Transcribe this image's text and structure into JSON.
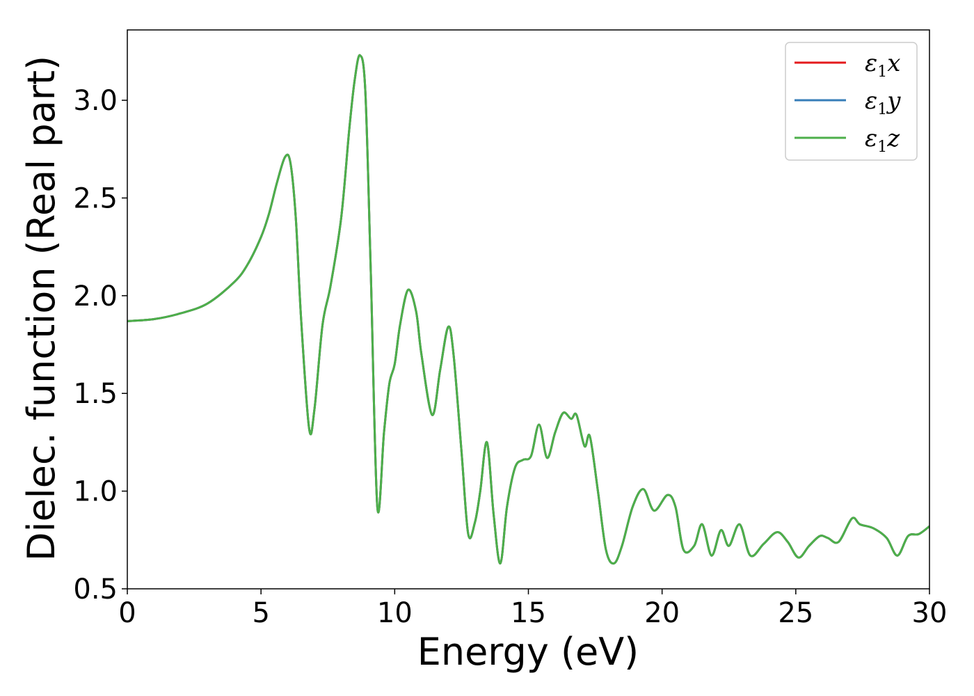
{
  "chart_data": {
    "type": "line",
    "title": "",
    "xlabel": "Energy (eV)",
    "ylabel": "Dielec. function (Real part)",
    "xlim": [
      0,
      30
    ],
    "ylim": [
      0.5,
      3.36
    ],
    "xticks": [
      0,
      5,
      10,
      15,
      20,
      25,
      30
    ],
    "xtick_labels": [
      "0",
      "5",
      "10",
      "15",
      "20",
      "25",
      "30"
    ],
    "yticks": [
      0.5,
      1.0,
      1.5,
      2.0,
      2.5,
      3.0
    ],
    "ytick_labels": [
      "0.5",
      "1.0",
      "1.5",
      "2.0",
      "2.5",
      "3.0"
    ],
    "grid": false,
    "legend_position": "top-right",
    "series": [
      {
        "name": "ε1x",
        "legend": {
          "base": "ε",
          "sub": "1",
          "comp": "x"
        },
        "color": "#e41a1c",
        "x": [
          0,
          1,
          2,
          3,
          4,
          4.5,
          5,
          5.3,
          5.6,
          5.9,
          6.1,
          6.3,
          6.5,
          6.8,
          7.0,
          7.3,
          7.6,
          8.0,
          8.3,
          8.5,
          8.7,
          8.9,
          9.1,
          9.35,
          9.6,
          9.8,
          10.0,
          10.2,
          10.5,
          10.8,
          11.0,
          11.4,
          11.7,
          12.0,
          12.2,
          12.5,
          12.75,
          13.0,
          13.2,
          13.45,
          13.7,
          13.95,
          14.2,
          14.5,
          14.8,
          15.1,
          15.4,
          15.7,
          16.0,
          16.3,
          16.6,
          16.8,
          17.1,
          17.3,
          17.6,
          17.9,
          18.2,
          18.5,
          18.9,
          19.3,
          19.7,
          20.2,
          20.5,
          20.8,
          21.2,
          21.5,
          21.85,
          22.2,
          22.5,
          22.9,
          23.3,
          23.8,
          24.3,
          24.7,
          25.1,
          25.5,
          25.9,
          26.2,
          26.6,
          27.1,
          27.4,
          27.9,
          28.4,
          28.8,
          29.2,
          29.6,
          30.0
        ],
        "y": [
          1.87,
          1.88,
          1.91,
          1.96,
          2.07,
          2.16,
          2.3,
          2.42,
          2.58,
          2.71,
          2.68,
          2.4,
          1.88,
          1.32,
          1.42,
          1.85,
          2.05,
          2.4,
          2.85,
          3.1,
          3.23,
          3.05,
          2.15,
          0.92,
          1.3,
          1.55,
          1.65,
          1.85,
          2.03,
          1.92,
          1.7,
          1.39,
          1.62,
          1.84,
          1.7,
          1.2,
          0.78,
          0.84,
          1.0,
          1.25,
          0.88,
          0.63,
          0.92,
          1.12,
          1.16,
          1.18,
          1.34,
          1.17,
          1.3,
          1.4,
          1.37,
          1.39,
          1.23,
          1.28,
          1.0,
          0.7,
          0.63,
          0.72,
          0.92,
          1.01,
          0.9,
          0.98,
          0.92,
          0.7,
          0.72,
          0.83,
          0.67,
          0.8,
          0.72,
          0.83,
          0.67,
          0.73,
          0.79,
          0.74,
          0.66,
          0.72,
          0.77,
          0.76,
          0.74,
          0.86,
          0.83,
          0.81,
          0.76,
          0.67,
          0.77,
          0.78,
          0.82
        ]
      },
      {
        "name": "ε1y",
        "legend": {
          "base": "ε",
          "sub": "1",
          "comp": "y"
        },
        "color": "#377eb8",
        "x": [
          0,
          1,
          2,
          3,
          4,
          4.5,
          5,
          5.3,
          5.6,
          5.9,
          6.1,
          6.3,
          6.5,
          6.8,
          7.0,
          7.3,
          7.6,
          8.0,
          8.3,
          8.5,
          8.7,
          8.9,
          9.1,
          9.35,
          9.6,
          9.8,
          10.0,
          10.2,
          10.5,
          10.8,
          11.0,
          11.4,
          11.7,
          12.0,
          12.2,
          12.5,
          12.75,
          13.0,
          13.2,
          13.45,
          13.7,
          13.95,
          14.2,
          14.5,
          14.8,
          15.1,
          15.4,
          15.7,
          16.0,
          16.3,
          16.6,
          16.8,
          17.1,
          17.3,
          17.6,
          17.9,
          18.2,
          18.5,
          18.9,
          19.3,
          19.7,
          20.2,
          20.5,
          20.8,
          21.2,
          21.5,
          21.85,
          22.2,
          22.5,
          22.9,
          23.3,
          23.8,
          24.3,
          24.7,
          25.1,
          25.5,
          25.9,
          26.2,
          26.6,
          27.1,
          27.4,
          27.9,
          28.4,
          28.8,
          29.2,
          29.6,
          30.0
        ],
        "y": [
          1.87,
          1.88,
          1.91,
          1.96,
          2.07,
          2.16,
          2.3,
          2.42,
          2.58,
          2.71,
          2.68,
          2.4,
          1.88,
          1.32,
          1.42,
          1.85,
          2.05,
          2.4,
          2.85,
          3.1,
          3.23,
          3.05,
          2.15,
          0.92,
          1.3,
          1.55,
          1.65,
          1.85,
          2.03,
          1.92,
          1.7,
          1.39,
          1.62,
          1.84,
          1.7,
          1.2,
          0.78,
          0.84,
          1.0,
          1.25,
          0.88,
          0.63,
          0.92,
          1.12,
          1.16,
          1.18,
          1.34,
          1.17,
          1.3,
          1.4,
          1.37,
          1.39,
          1.23,
          1.28,
          1.0,
          0.7,
          0.63,
          0.72,
          0.92,
          1.01,
          0.9,
          0.98,
          0.92,
          0.7,
          0.72,
          0.83,
          0.67,
          0.8,
          0.72,
          0.83,
          0.67,
          0.73,
          0.79,
          0.74,
          0.66,
          0.72,
          0.77,
          0.76,
          0.74,
          0.86,
          0.83,
          0.81,
          0.76,
          0.67,
          0.77,
          0.78,
          0.82
        ]
      },
      {
        "name": "ε1z",
        "legend": {
          "base": "ε",
          "sub": "1",
          "comp": "z"
        },
        "color": "#4daf4a",
        "x": [
          0,
          1,
          2,
          3,
          4,
          4.5,
          5,
          5.3,
          5.6,
          5.9,
          6.1,
          6.3,
          6.5,
          6.8,
          7.0,
          7.3,
          7.6,
          8.0,
          8.3,
          8.5,
          8.7,
          8.9,
          9.1,
          9.35,
          9.6,
          9.8,
          10.0,
          10.2,
          10.5,
          10.8,
          11.0,
          11.4,
          11.7,
          12.0,
          12.2,
          12.5,
          12.75,
          13.0,
          13.2,
          13.45,
          13.7,
          13.95,
          14.2,
          14.5,
          14.8,
          15.1,
          15.4,
          15.7,
          16.0,
          16.3,
          16.6,
          16.8,
          17.1,
          17.3,
          17.6,
          17.9,
          18.2,
          18.5,
          18.9,
          19.3,
          19.7,
          20.2,
          20.5,
          20.8,
          21.2,
          21.5,
          21.85,
          22.2,
          22.5,
          22.9,
          23.3,
          23.8,
          24.3,
          24.7,
          25.1,
          25.5,
          25.9,
          26.2,
          26.6,
          27.1,
          27.4,
          27.9,
          28.4,
          28.8,
          29.2,
          29.6,
          30.0
        ],
        "y": [
          1.87,
          1.88,
          1.91,
          1.96,
          2.07,
          2.16,
          2.3,
          2.42,
          2.58,
          2.71,
          2.68,
          2.4,
          1.88,
          1.32,
          1.42,
          1.85,
          2.05,
          2.4,
          2.85,
          3.1,
          3.23,
          3.05,
          2.15,
          0.92,
          1.3,
          1.55,
          1.65,
          1.85,
          2.03,
          1.92,
          1.7,
          1.39,
          1.62,
          1.84,
          1.7,
          1.2,
          0.78,
          0.84,
          1.0,
          1.25,
          0.88,
          0.63,
          0.92,
          1.12,
          1.16,
          1.18,
          1.34,
          1.17,
          1.3,
          1.4,
          1.37,
          1.39,
          1.23,
          1.28,
          1.0,
          0.7,
          0.63,
          0.72,
          0.92,
          1.01,
          0.9,
          0.98,
          0.92,
          0.7,
          0.72,
          0.83,
          0.67,
          0.8,
          0.72,
          0.83,
          0.67,
          0.73,
          0.79,
          0.74,
          0.66,
          0.72,
          0.77,
          0.76,
          0.74,
          0.86,
          0.83,
          0.81,
          0.76,
          0.67,
          0.77,
          0.78,
          0.82
        ]
      }
    ]
  }
}
